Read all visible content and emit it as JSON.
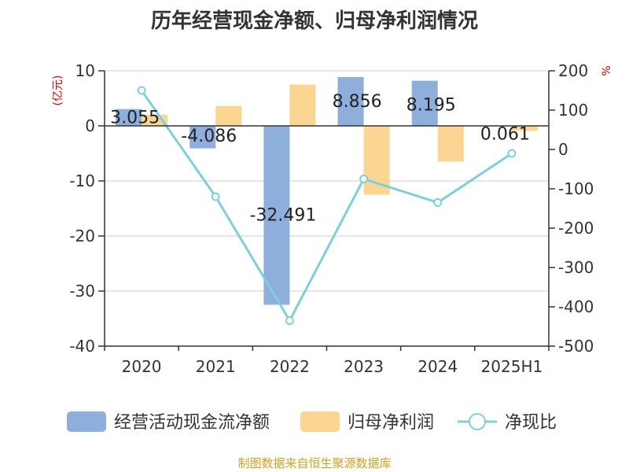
{
  "title": "历年经营现金净额、归母净利润情况",
  "source": "制图数据来自恒生聚源数据库",
  "colors": {
    "cash": "#8eaedc",
    "profit": "#fdd592",
    "ratio": "#7fd0d6",
    "axis": "#333333",
    "grid": "#cccccc",
    "unit": "#d40000",
    "source": "#c9a227"
  },
  "chart_data": {
    "type": "bar",
    "categories": [
      "2020",
      "2021",
      "2022",
      "2023",
      "2024",
      "2025H1"
    ],
    "series": [
      {
        "name": "经营活动现金流净额",
        "type": "bar",
        "axis": "left",
        "values": [
          3.055,
          -4.086,
          -32.491,
          8.856,
          8.195,
          0.061
        ],
        "labels": [
          "3.055",
          "-4.086",
          "-32.491",
          "8.856",
          "8.195",
          "0.061"
        ]
      },
      {
        "name": "归母净利润",
        "type": "bar",
        "axis": "left",
        "values": [
          2.0,
          3.6,
          7.5,
          -12.5,
          -6.5,
          -0.9
        ]
      },
      {
        "name": "净现比",
        "type": "line",
        "axis": "right",
        "values": [
          150,
          -120,
          -435,
          -75,
          -135,
          -10
        ]
      }
    ],
    "y_left": {
      "label": "(亿元)",
      "min": -40,
      "max": 10,
      "ticks": [
        "10",
        "0",
        "-10",
        "-20",
        "-30",
        "-40"
      ]
    },
    "y_right": {
      "label": "%",
      "min": -500,
      "max": 200,
      "ticks": [
        "200",
        "100",
        "0",
        "-100",
        "-200",
        "-300",
        "-400",
        "-500"
      ]
    },
    "grid": true,
    "legend_position": "bottom"
  }
}
